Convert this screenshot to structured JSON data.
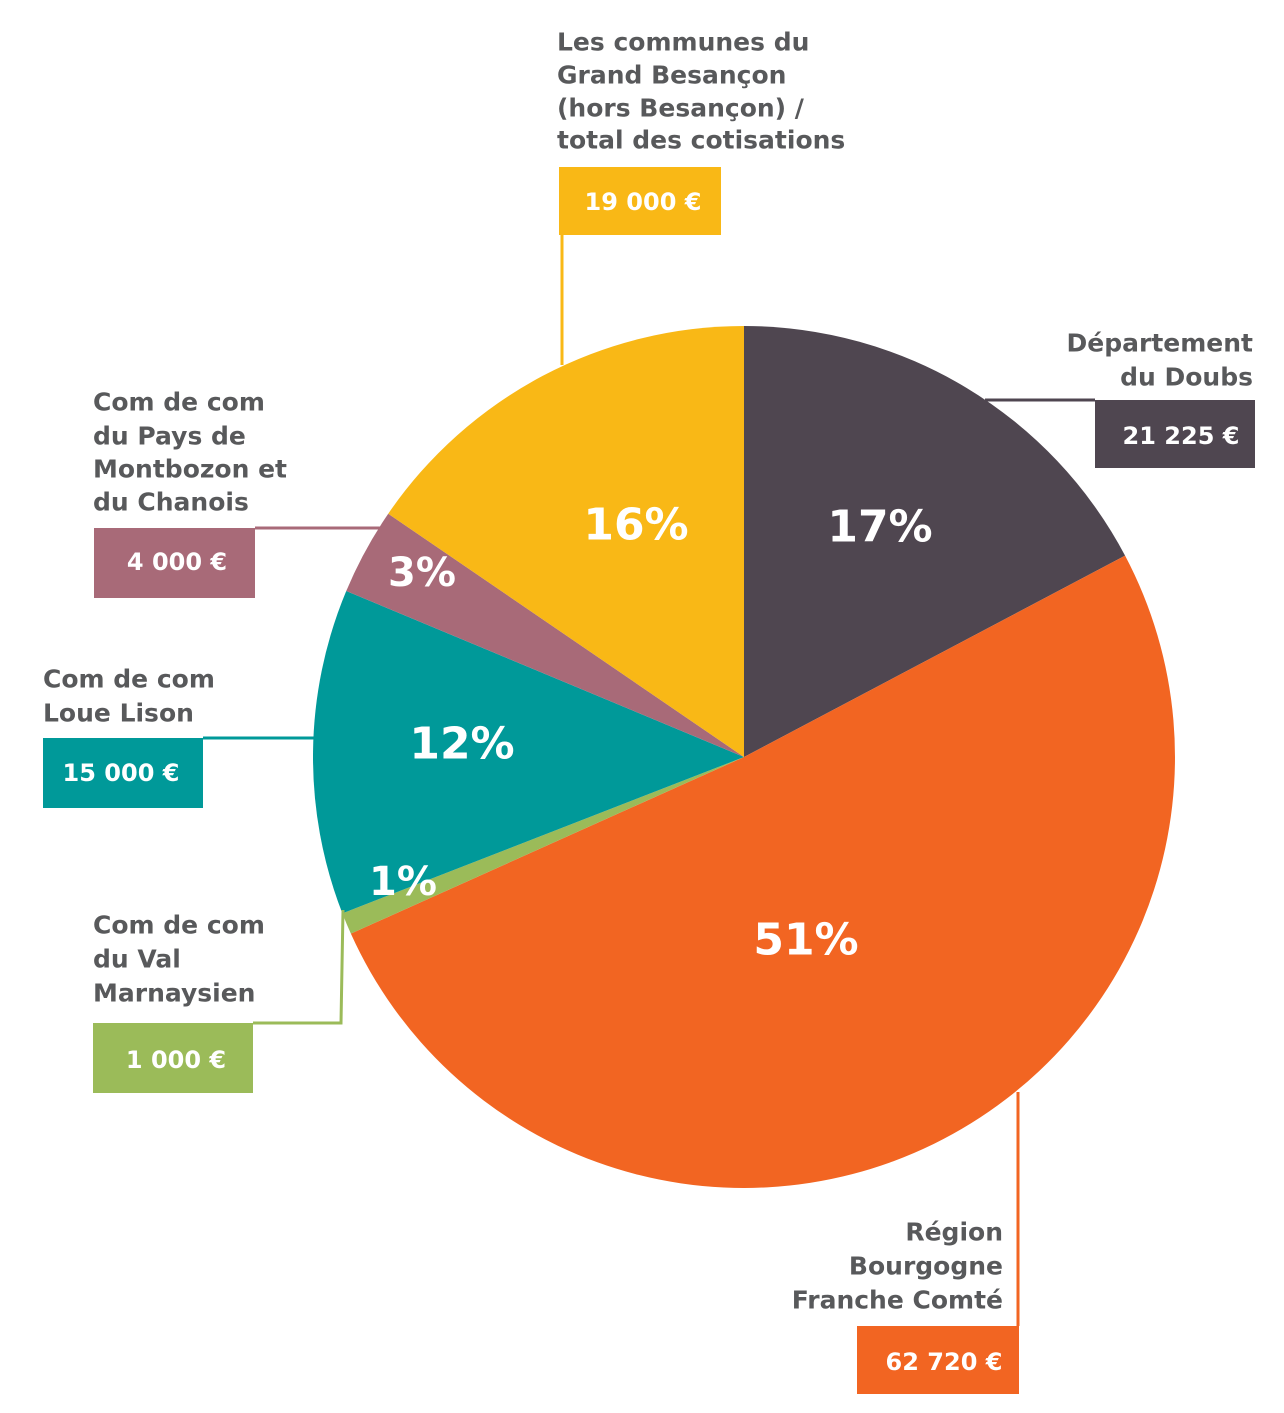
{
  "chart_data": {
    "type": "pie",
    "slices": [
      {
        "label": [
          "Département",
          "du Doubs"
        ],
        "value": 21225,
        "value_text": "21 225 €",
        "percent_text": "17%",
        "color": "#4f4650"
      },
      {
        "label": [
          "Région",
          "Bourgogne",
          "Franche Comté"
        ],
        "value": 62720,
        "value_text": "62 720 €",
        "percent_text": "51%",
        "color": "#f26522"
      },
      {
        "label": [
          "Com de com",
          "du Val",
          "Marnaysien"
        ],
        "value": 1000,
        "value_text": "1 000 €",
        "percent_text": "1%",
        "color": "#9bbb59"
      },
      {
        "label": [
          "Com de com",
          "Loue Lison"
        ],
        "value": 15000,
        "value_text": "15 000 €",
        "percent_text": "12%",
        "color": "#009999"
      },
      {
        "label": [
          "Com de com",
          "du Pays de",
          "Montbozon et",
          "du Chanois"
        ],
        "value": 4000,
        "value_text": "4 000 €",
        "percent_text": "3%",
        "color": "#a86a78"
      },
      {
        "label": [
          "Les communes du",
          "Grand Besançon",
          "(hors Besançon) /",
          "total des cotisations"
        ],
        "value": 19000,
        "value_text": "19 000 €",
        "percent_text": "16%",
        "color": "#f9b816"
      }
    ]
  }
}
